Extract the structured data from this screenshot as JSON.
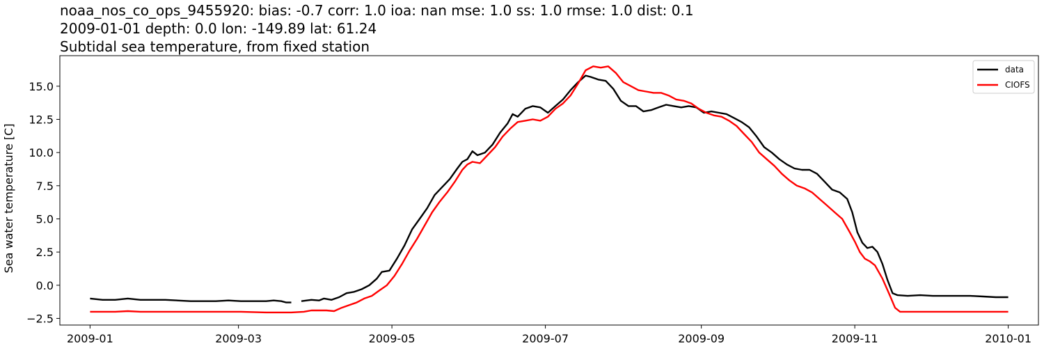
{
  "title": {
    "line1": "noaa_nos_co_ops_9455920: bias: -0.7  corr: 1.0  ioa: nan  mse: 1.0  ss: 1.0  rmse: 1.0  dist: 0.1",
    "line2": "2009-01-01 depth: 0.0 lon: -149.89 lat: 61.24",
    "line3": "Subtidal sea temperature, from fixed station"
  },
  "chart_data": {
    "type": "line",
    "title": "Subtidal sea temperature, from fixed station",
    "xlabel": "",
    "ylabel": "Sea water temperature [C]",
    "x_unit": "days since 2009-01-01",
    "xlim": [
      -12,
      377
    ],
    "ylim": [
      -3.0,
      17.3
    ],
    "x_ticks": [
      {
        "label": "2009-01",
        "day": 0
      },
      {
        "label": "2009-03",
        "day": 59
      },
      {
        "label": "2009-05",
        "day": 120
      },
      {
        "label": "2009-07",
        "day": 181
      },
      {
        "label": "2009-09",
        "day": 243
      },
      {
        "label": "2009-11",
        "day": 304
      },
      {
        "label": "2010-01",
        "day": 365
      }
    ],
    "y_ticks": [
      {
        "label": "−2.5",
        "value": -2.5
      },
      {
        "label": "0.0",
        "value": 0.0
      },
      {
        "label": "2.5",
        "value": 2.5
      },
      {
        "label": "5.0",
        "value": 5.0
      },
      {
        "label": "7.5",
        "value": 7.5
      },
      {
        "label": "10.0",
        "value": 10.0
      },
      {
        "label": "12.5",
        "value": 12.5
      },
      {
        "label": "15.0",
        "value": 15.0
      }
    ],
    "legend": {
      "position": "top-right",
      "entries": [
        "data",
        "CIOFS"
      ]
    },
    "series": [
      {
        "name": "data",
        "color": "#000000",
        "segments": [
          [
            [
              0,
              -1.0
            ],
            [
              5,
              -1.1
            ],
            [
              10,
              -1.1
            ],
            [
              15,
              -1.0
            ],
            [
              20,
              -1.1
            ],
            [
              30,
              -1.1
            ],
            [
              40,
              -1.2
            ],
            [
              50,
              -1.2
            ],
            [
              55,
              -1.15
            ],
            [
              60,
              -1.2
            ],
            [
              70,
              -1.2
            ],
            [
              73,
              -1.15
            ],
            [
              76,
              -1.2
            ],
            [
              78,
              -1.3
            ],
            [
              80,
              -1.3
            ]
          ],
          [
            [
              84,
              -1.2
            ],
            [
              88,
              -1.1
            ],
            [
              91,
              -1.15
            ],
            [
              93,
              -1.0
            ],
            [
              96,
              -1.1
            ],
            [
              99,
              -0.9
            ],
            [
              102,
              -0.6
            ],
            [
              105,
              -0.5
            ],
            [
              108,
              -0.3
            ],
            [
              111,
              0.0
            ],
            [
              114,
              0.5
            ],
            [
              116,
              1.0
            ],
            [
              119,
              1.1
            ],
            [
              122,
              2.0
            ],
            [
              125,
              3.0
            ],
            [
              128,
              4.2
            ],
            [
              131,
              5.0
            ],
            [
              134,
              5.8
            ],
            [
              137,
              6.8
            ],
            [
              140,
              7.4
            ],
            [
              143,
              8.0
            ],
            [
              146,
              8.8
            ],
            [
              148,
              9.3
            ],
            [
              150,
              9.5
            ],
            [
              152,
              10.1
            ],
            [
              154,
              9.8
            ],
            [
              157,
              10.0
            ],
            [
              160,
              10.6
            ],
            [
              163,
              11.5
            ],
            [
              166,
              12.2
            ],
            [
              168,
              12.9
            ],
            [
              170,
              12.7
            ],
            [
              173,
              13.3
            ],
            [
              176,
              13.5
            ],
            [
              179,
              13.4
            ],
            [
              182,
              13.0
            ],
            [
              185,
              13.5
            ],
            [
              188,
              14.0
            ],
            [
              191,
              14.7
            ],
            [
              194,
              15.3
            ],
            [
              197,
              15.8
            ],
            [
              199,
              15.7
            ],
            [
              202,
              15.5
            ],
            [
              205,
              15.4
            ],
            [
              208,
              14.8
            ],
            [
              211,
              13.9
            ],
            [
              214,
              13.5
            ],
            [
              217,
              13.5
            ],
            [
              220,
              13.1
            ],
            [
              223,
              13.2
            ],
            [
              226,
              13.4
            ],
            [
              229,
              13.6
            ],
            [
              232,
              13.5
            ],
            [
              235,
              13.4
            ],
            [
              238,
              13.5
            ],
            [
              241,
              13.4
            ],
            [
              244,
              13.0
            ],
            [
              247,
              13.1
            ],
            [
              250,
              13.0
            ],
            [
              253,
              12.9
            ],
            [
              256,
              12.6
            ],
            [
              259,
              12.3
            ],
            [
              262,
              11.9
            ],
            [
              265,
              11.2
            ],
            [
              268,
              10.4
            ],
            [
              271,
              10.0
            ],
            [
              274,
              9.5
            ],
            [
              277,
              9.1
            ],
            [
              280,
              8.8
            ],
            [
              283,
              8.7
            ],
            [
              286,
              8.7
            ],
            [
              289,
              8.4
            ],
            [
              292,
              7.8
            ],
            [
              295,
              7.2
            ],
            [
              298,
              7.0
            ],
            [
              301,
              6.5
            ],
            [
              303,
              5.5
            ],
            [
              305,
              4.0
            ],
            [
              307,
              3.2
            ],
            [
              309,
              2.8
            ],
            [
              311,
              2.9
            ],
            [
              313,
              2.5
            ],
            [
              315,
              1.6
            ],
            [
              317,
              0.4
            ],
            [
              319,
              -0.6
            ],
            [
              321,
              -0.75
            ],
            [
              325,
              -0.8
            ],
            [
              330,
              -0.75
            ],
            [
              335,
              -0.8
            ],
            [
              340,
              -0.8
            ],
            [
              345,
              -0.8
            ],
            [
              350,
              -0.8
            ],
            [
              355,
              -0.85
            ],
            [
              360,
              -0.9
            ],
            [
              365,
              -0.9
            ]
          ]
        ]
      },
      {
        "name": "CIOFS",
        "color": "#ff0000",
        "segments": [
          [
            [
              0,
              -2.0
            ],
            [
              10,
              -2.0
            ],
            [
              15,
              -1.95
            ],
            [
              20,
              -2.0
            ],
            [
              30,
              -2.0
            ],
            [
              40,
              -2.0
            ],
            [
              50,
              -2.0
            ],
            [
              60,
              -2.0
            ],
            [
              70,
              -2.05
            ],
            [
              80,
              -2.05
            ],
            [
              85,
              -2.0
            ],
            [
              88,
              -1.9
            ],
            [
              91,
              -1.9
            ],
            [
              94,
              -1.9
            ],
            [
              97,
              -1.95
            ],
            [
              100,
              -1.7
            ],
            [
              103,
              -1.5
            ],
            [
              106,
              -1.3
            ],
            [
              109,
              -1.0
            ],
            [
              112,
              -0.8
            ],
            [
              115,
              -0.4
            ],
            [
              118,
              0.0
            ],
            [
              121,
              0.7
            ],
            [
              124,
              1.6
            ],
            [
              127,
              2.6
            ],
            [
              130,
              3.5
            ],
            [
              133,
              4.5
            ],
            [
              136,
              5.5
            ],
            [
              139,
              6.3
            ],
            [
              142,
              7.0
            ],
            [
              145,
              7.8
            ],
            [
              148,
              8.7
            ],
            [
              150,
              9.1
            ],
            [
              152,
              9.3
            ],
            [
              155,
              9.2
            ],
            [
              158,
              9.8
            ],
            [
              161,
              10.4
            ],
            [
              164,
              11.2
            ],
            [
              167,
              11.8
            ],
            [
              170,
              12.3
            ],
            [
              173,
              12.4
            ],
            [
              176,
              12.5
            ],
            [
              179,
              12.4
            ],
            [
              182,
              12.7
            ],
            [
              185,
              13.3
            ],
            [
              188,
              13.7
            ],
            [
              191,
              14.3
            ],
            [
              194,
              15.2
            ],
            [
              197,
              16.2
            ],
            [
              200,
              16.5
            ],
            [
              203,
              16.4
            ],
            [
              206,
              16.5
            ],
            [
              209,
              16.0
            ],
            [
              212,
              15.3
            ],
            [
              215,
              15.0
            ],
            [
              218,
              14.7
            ],
            [
              221,
              14.6
            ],
            [
              224,
              14.5
            ],
            [
              227,
              14.5
            ],
            [
              230,
              14.3
            ],
            [
              233,
              14.0
            ],
            [
              236,
              13.9
            ],
            [
              239,
              13.7
            ],
            [
              242,
              13.3
            ],
            [
              245,
              13.0
            ],
            [
              248,
              12.8
            ],
            [
              251,
              12.7
            ],
            [
              254,
              12.4
            ],
            [
              257,
              12.0
            ],
            [
              260,
              11.4
            ],
            [
              263,
              10.8
            ],
            [
              266,
              10.0
            ],
            [
              269,
              9.5
            ],
            [
              272,
              9.0
            ],
            [
              275,
              8.4
            ],
            [
              278,
              7.9
            ],
            [
              281,
              7.5
            ],
            [
              284,
              7.3
            ],
            [
              287,
              7.0
            ],
            [
              290,
              6.5
            ],
            [
              293,
              6.0
            ],
            [
              296,
              5.5
            ],
            [
              299,
              5.0
            ],
            [
              302,
              4.0
            ],
            [
              304,
              3.3
            ],
            [
              306,
              2.5
            ],
            [
              308,
              2.0
            ],
            [
              310,
              1.8
            ],
            [
              312,
              1.5
            ],
            [
              315,
              0.5
            ],
            [
              318,
              -0.8
            ],
            [
              320,
              -1.7
            ],
            [
              322,
              -2.0
            ],
            [
              330,
              -2.0
            ],
            [
              340,
              -2.0
            ],
            [
              350,
              -2.0
            ],
            [
              360,
              -2.0
            ],
            [
              365,
              -2.0
            ]
          ]
        ]
      }
    ]
  }
}
